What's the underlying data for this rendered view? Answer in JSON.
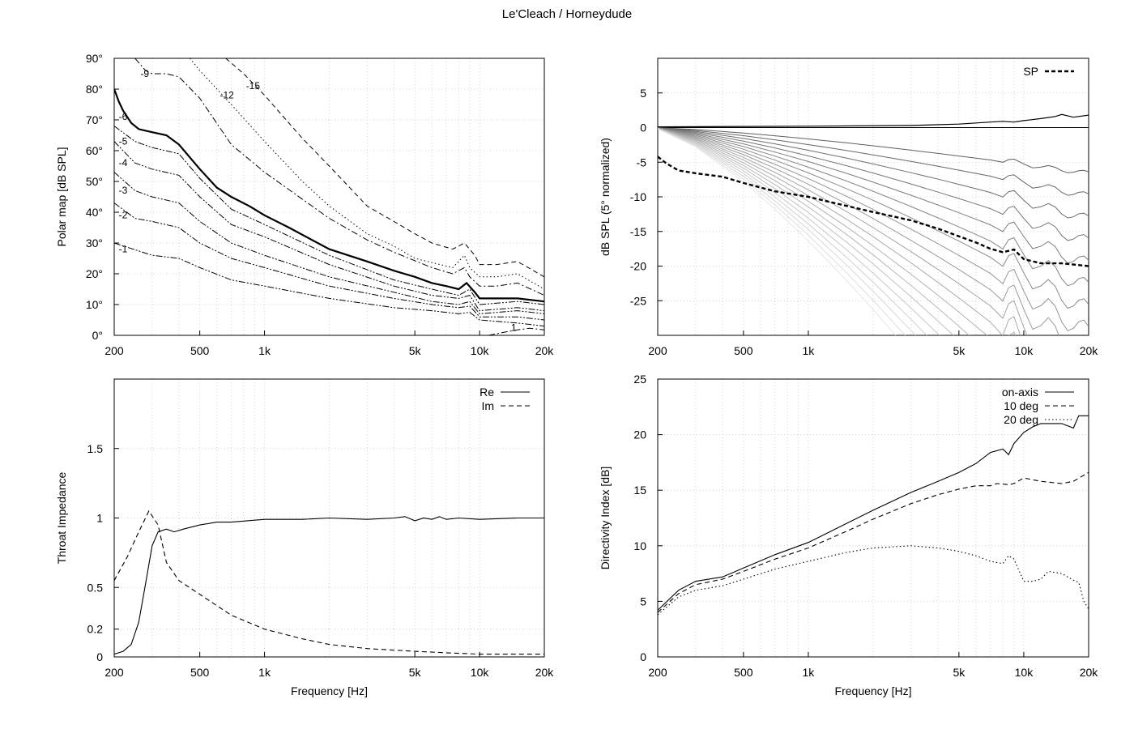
{
  "figure_title": "Le'Cleach / Horneydude",
  "chart_data": [
    {
      "id": "polar",
      "type": "line",
      "subtype": "contour",
      "ylabel": "Polar map [dB SPL]",
      "xlabel": "",
      "xscale": "log",
      "xlim": [
        200,
        20000
      ],
      "ylim": [
        0,
        90
      ],
      "xticks": [
        200,
        500,
        1000,
        5000,
        10000,
        20000
      ],
      "xticklabels": [
        "200",
        "500",
        "1k",
        "5k",
        "10k",
        "20k"
      ],
      "yticks": [
        0,
        10,
        20,
        30,
        40,
        50,
        60,
        70,
        80,
        90
      ],
      "yticklabels": [
        "0°",
        "10°",
        "20°",
        "30°",
        "40°",
        "50°",
        "60°",
        "70°",
        "80°",
        "90°"
      ],
      "grid": true,
      "series": [
        {
          "level": "-1",
          "label": "-1",
          "label_at": [
            210,
            27
          ],
          "style": "dashdotdot",
          "width": 1,
          "x": [
            200,
            300,
            400,
            500,
            700,
            1000,
            2000,
            4000,
            6000,
            8000,
            9000,
            10000,
            15000,
            20000
          ],
          "y": [
            30,
            26,
            25,
            22,
            18,
            16,
            12,
            9,
            8,
            7,
            7.5,
            5,
            4,
            3
          ]
        },
        {
          "level": "-2",
          "label": "-2",
          "label_at": [
            210,
            38
          ],
          "style": "dashdotdot",
          "width": 1,
          "x": [
            200,
            250,
            300,
            400,
            500,
            700,
            1000,
            2000,
            4000,
            6000,
            8000,
            9000,
            10000,
            15000,
            20000
          ],
          "y": [
            43,
            38,
            37,
            35,
            30,
            25,
            22,
            16,
            12,
            10,
            9,
            9.5,
            6,
            6,
            5
          ]
        },
        {
          "level": "-3",
          "label": "-3",
          "label_at": [
            210,
            46
          ],
          "style": "dashdotdot",
          "width": 1,
          "x": [
            200,
            250,
            300,
            400,
            500,
            700,
            1000,
            2000,
            4000,
            6000,
            8000,
            9000,
            10000,
            15000,
            20000
          ],
          "y": [
            53,
            47,
            45,
            43,
            37,
            30,
            26,
            19,
            14,
            11,
            10,
            11,
            7,
            8,
            7
          ]
        },
        {
          "level": "-4",
          "label": "-4",
          "label_at": [
            210,
            55
          ],
          "style": "dashdotdot",
          "width": 1,
          "x": [
            200,
            250,
            300,
            400,
            500,
            700,
            1000,
            2000,
            4000,
            6000,
            8000,
            9000,
            10000,
            15000,
            20000
          ],
          "y": [
            63,
            56,
            54,
            52,
            45,
            36,
            32,
            23,
            16,
            13,
            12,
            13,
            8,
            9,
            8
          ]
        },
        {
          "level": "-5",
          "label": "-5",
          "label_at": [
            210,
            62
          ],
          "style": "dashdotdot",
          "width": 1,
          "x": [
            200,
            250,
            300,
            400,
            500,
            700,
            1000,
            2000,
            4000,
            6000,
            8000,
            9000,
            10000,
            15000,
            20000
          ],
          "y": [
            68,
            63,
            61,
            59,
            51,
            41,
            36,
            26,
            18,
            15,
            13,
            15,
            10,
            11,
            10
          ]
        },
        {
          "level": "-6",
          "label": "-6",
          "label_at": [
            210,
            70
          ],
          "style": "solid",
          "width": 2.2,
          "x": [
            200,
            210,
            220,
            240,
            260,
            300,
            350,
            400,
            500,
            600,
            700,
            850,
            1000,
            1300,
            2000,
            3000,
            4000,
            5000,
            6000,
            7000,
            8000,
            8700,
            9500,
            10000,
            12000,
            15000,
            20000
          ],
          "y": [
            80,
            76,
            73,
            69,
            67,
            66,
            65,
            62,
            54,
            48,
            45,
            42,
            39,
            35,
            28,
            24,
            21,
            19,
            17,
            16,
            15,
            17,
            14,
            12,
            12,
            12,
            11
          ]
        },
        {
          "level": "-9",
          "label": "-9",
          "label_at": [
            265,
            84
          ],
          "style": "dashdot",
          "width": 1,
          "x": [
            250,
            280,
            300,
            350,
            400,
            500,
            700,
            1000,
            2000,
            3000,
            4000,
            6000,
            7500,
            8500,
            9000,
            10000,
            12000,
            15000,
            20000
          ],
          "y": [
            90,
            86,
            85,
            85,
            84,
            77,
            62,
            53,
            38,
            31,
            27,
            22,
            20,
            22,
            19,
            16,
            16,
            17,
            13
          ]
        },
        {
          "level": "-12",
          "label": "-12",
          "label_at": [
            620,
            77
          ],
          "style": "dotted",
          "width": 1,
          "x": [
            450,
            500,
            700,
            1000,
            1500,
            2000,
            3000,
            4000,
            5000,
            7500,
            8500,
            9000,
            10000,
            12000,
            15000,
            20000
          ],
          "y": [
            90,
            86,
            75,
            63,
            50,
            42,
            33,
            29,
            25,
            22,
            26,
            22,
            19,
            19,
            20,
            15
          ]
        },
        {
          "level": "-15",
          "label": "-15",
          "label_at": [
            820,
            80
          ],
          "style": "dashed",
          "width": 1,
          "x": [
            660,
            800,
            1000,
            1500,
            2000,
            3000,
            4000,
            5000,
            6000,
            7500,
            8500,
            9500,
            10000,
            12000,
            15000,
            20000
          ],
          "y": [
            90,
            85,
            78,
            64,
            55,
            42,
            37,
            33,
            30,
            28,
            30,
            26,
            23,
            23,
            24,
            19
          ]
        },
        {
          "level": "1",
          "label": "1",
          "label_at": [
            14000,
            1.5
          ],
          "style": "dashdot",
          "width": 1,
          "x": [
            11000,
            13000,
            15000,
            17000,
            20000
          ],
          "y": [
            0,
            1,
            1.8,
            2.3,
            1.8
          ]
        }
      ]
    },
    {
      "id": "spl",
      "type": "line",
      "ylabel": "dB SPL (5° normalized)",
      "xlabel": "",
      "xscale": "log",
      "xlim": [
        200,
        20000
      ],
      "ylim": [
        -30,
        10
      ],
      "xticks": [
        200,
        500,
        1000,
        5000,
        10000,
        20000
      ],
      "xticklabels": [
        "200",
        "500",
        "1k",
        "5k",
        "10k",
        "20k"
      ],
      "yticks": [
        5,
        0,
        -5,
        -10,
        -15,
        -20,
        -25
      ],
      "yticklabels": [
        "5",
        "0",
        "-5",
        "-10",
        "-15",
        "-20",
        "-25"
      ],
      "grid": true,
      "legend": {
        "position": "top-right",
        "entries": [
          "SP"
        ]
      },
      "on_axis": {
        "x": [
          200,
          1000,
          3000,
          5000,
          7000,
          8000,
          9000,
          10000,
          12000,
          14000,
          15000,
          17000,
          20000
        ],
        "y": [
          0.1,
          0.2,
          0.3,
          0.5,
          0.8,
          0.9,
          0.8,
          1.0,
          1.3,
          1.6,
          1.9,
          1.5,
          1.8
        ]
      },
      "polar_curves": {
        "description_fraction_param": "f",
        "f": [
          0.1,
          0.15,
          0.2,
          0.25,
          0.3,
          0.35,
          0.4,
          0.45,
          0.5,
          0.55,
          0.6,
          0.65,
          0.7,
          0.75,
          0.8,
          0.85,
          0.9,
          0.95,
          1.0
        ]
      },
      "sound_power": {
        "name": "SP",
        "x": [
          200,
          220,
          250,
          300,
          400,
          500,
          700,
          1000,
          1500,
          2000,
          3000,
          4000,
          5000,
          6000,
          7000,
          8000,
          9000,
          10000,
          12000,
          15000,
          20000
        ],
        "y": [
          -4.2,
          -5.2,
          -6.2,
          -6.6,
          -7.1,
          -8.0,
          -9.2,
          -10.0,
          -11.3,
          -12.2,
          -13.4,
          -14.6,
          -15.7,
          -16.6,
          -17.5,
          -18.0,
          -17.6,
          -19.0,
          -19.6,
          -19.6,
          -20.0
        ]
      }
    },
    {
      "id": "impedance",
      "type": "line",
      "ylabel": "Throat Impedance",
      "xlabel": "Frequency [Hz]",
      "xscale": "log",
      "xlim": [
        200,
        20000
      ],
      "ylim": [
        0,
        2
      ],
      "xticks": [
        200,
        500,
        1000,
        5000,
        10000,
        20000
      ],
      "xticklabels": [
        "200",
        "500",
        "1k",
        "5k",
        "10k",
        "20k"
      ],
      "yticks": [
        0,
        0.2,
        0.5,
        1,
        1.5
      ],
      "yticklabels": [
        "0",
        "0.2",
        "0.5",
        "1",
        "1.5"
      ],
      "grid": true,
      "legend": {
        "position": "top-right",
        "entries": [
          "Re",
          "Im"
        ]
      },
      "series": [
        {
          "name": "Re",
          "style": "solid",
          "x": [
            200,
            220,
            240,
            260,
            280,
            300,
            320,
            350,
            380,
            420,
            500,
            600,
            700,
            1000,
            1500,
            2000,
            3000,
            4000,
            4500,
            5000,
            5500,
            6000,
            6500,
            7000,
            8000,
            10000,
            15000,
            20000
          ],
          "y": [
            0.02,
            0.04,
            0.09,
            0.25,
            0.53,
            0.8,
            0.9,
            0.92,
            0.9,
            0.92,
            0.95,
            0.97,
            0.97,
            0.99,
            0.99,
            1.0,
            0.99,
            1.0,
            1.01,
            0.98,
            1.0,
            0.99,
            1.01,
            0.99,
            1.0,
            0.99,
            1.0,
            1.0
          ]
        },
        {
          "name": "Im",
          "style": "dashed",
          "x": [
            200,
            230,
            260,
            290,
            320,
            350,
            400,
            500,
            700,
            1000,
            1500,
            2000,
            3000,
            5000,
            7000,
            10000,
            15000,
            20000
          ],
          "y": [
            0.55,
            0.72,
            0.9,
            1.05,
            0.95,
            0.68,
            0.55,
            0.45,
            0.3,
            0.2,
            0.13,
            0.09,
            0.06,
            0.04,
            0.03,
            0.02,
            0.02,
            0.02
          ]
        }
      ]
    },
    {
      "id": "directivity",
      "type": "line",
      "ylabel": "Directivity Index [dB]",
      "xlabel": "Frequency [Hz]",
      "xscale": "log",
      "xlim": [
        200,
        20000
      ],
      "ylim": [
        0,
        25
      ],
      "xticks": [
        200,
        500,
        1000,
        5000,
        10000,
        20000
      ],
      "xticklabels": [
        "200",
        "500",
        "1k",
        "5k",
        "10k",
        "20k"
      ],
      "yticks": [
        0,
        5,
        10,
        15,
        20,
        25
      ],
      "yticklabels": [
        "0",
        "5",
        "10",
        "15",
        "20",
        "25"
      ],
      "grid": true,
      "legend": {
        "position": "top-right",
        "entries": [
          "on-axis",
          "10 deg",
          "20 deg"
        ]
      },
      "series": [
        {
          "name": "on-axis",
          "style": "solid",
          "x": [
            200,
            250,
            300,
            400,
            500,
            700,
            1000,
            1500,
            2000,
            3000,
            4000,
            5000,
            6000,
            7000,
            8000,
            8500,
            9000,
            10000,
            11000,
            12000,
            15000,
            17000,
            18000,
            20000
          ],
          "y": [
            4.2,
            6.0,
            6.8,
            7.2,
            8.0,
            9.2,
            10.3,
            12.0,
            13.2,
            14.8,
            15.8,
            16.6,
            17.4,
            18.4,
            18.7,
            18.2,
            19.2,
            20.2,
            20.7,
            21.0,
            21.0,
            20.6,
            21.7,
            21.7
          ]
        },
        {
          "name": "10 deg",
          "style": "dashed",
          "x": [
            200,
            250,
            300,
            400,
            500,
            700,
            1000,
            1500,
            2000,
            3000,
            4000,
            5000,
            6000,
            7000,
            7500,
            8500,
            9000,
            10000,
            12000,
            15000,
            17000,
            20000
          ],
          "y": [
            4.0,
            5.7,
            6.5,
            7.0,
            7.7,
            8.8,
            9.8,
            11.3,
            12.4,
            13.8,
            14.6,
            15.1,
            15.4,
            15.4,
            15.6,
            15.5,
            15.6,
            16.1,
            15.8,
            15.6,
            15.8,
            16.6
          ]
        },
        {
          "name": "20 deg",
          "style": "dotted",
          "x": [
            200,
            250,
            300,
            400,
            500,
            700,
            1000,
            1500,
            2000,
            3000,
            4000,
            5000,
            6000,
            7000,
            8000,
            8500,
            9000,
            10000,
            11000,
            12000,
            13000,
            15000,
            17000,
            18000,
            19000,
            20000
          ],
          "y": [
            3.8,
            5.4,
            6.0,
            6.4,
            7.0,
            7.9,
            8.6,
            9.4,
            9.8,
            10.0,
            9.8,
            9.5,
            9.1,
            8.6,
            8.4,
            9.1,
            8.8,
            6.8,
            6.8,
            7.0,
            7.7,
            7.5,
            6.9,
            6.7,
            5.0,
            4.3
          ]
        }
      ]
    }
  ]
}
